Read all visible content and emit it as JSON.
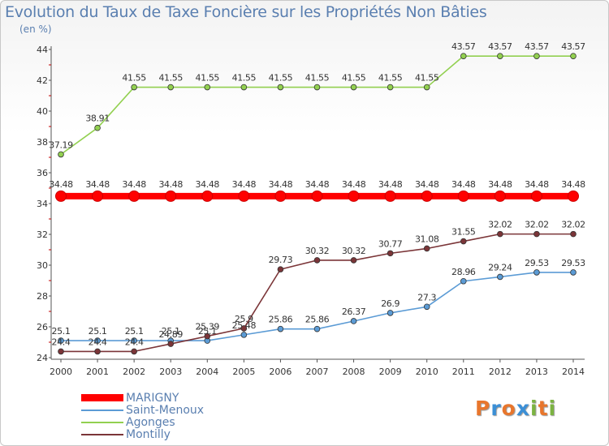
{
  "header": {
    "title": "Evolution du Taux de Taxe Foncière sur les Propriétés Non Bâties",
    "unit": "(en %)"
  },
  "logo": {
    "text": "Proxiti"
  },
  "chart_data": {
    "type": "line",
    "title": "Evolution du Taux de Taxe Foncière sur les Propriétés Non Bâties",
    "ylabel": "(en %)",
    "xlabel": "",
    "ylim": [
      24,
      44
    ],
    "yticks": [
      24,
      26,
      28,
      30,
      32,
      34,
      36,
      38,
      40,
      42,
      44
    ],
    "grid": false,
    "legend_position": "bottom-left",
    "categories": [
      "2000",
      "2001",
      "2002",
      "2003",
      "2004",
      "2005",
      "2006",
      "2007",
      "2008",
      "2009",
      "2010",
      "2011",
      "2012",
      "2013",
      "2014"
    ],
    "series": [
      {
        "name": "MARIGNY",
        "color": "#ff0000",
        "values": [
          34.48,
          34.48,
          34.48,
          34.48,
          34.48,
          34.48,
          34.48,
          34.48,
          34.48,
          34.48,
          34.48,
          34.48,
          34.48,
          34.48,
          34.48
        ],
        "labels": [
          "34.48",
          "34.48",
          "34.48",
          "34.48",
          "34.48",
          "34.48",
          "34.48",
          "34.48",
          "34.48",
          "34.48",
          "34.48",
          "34.48",
          "34.48",
          "34.48",
          "34.48"
        ]
      },
      {
        "name": "Saint-Menoux",
        "color": "#5b9bd5",
        "values": [
          25.1,
          25.1,
          25.1,
          25.1,
          25.1,
          25.48,
          25.86,
          25.86,
          26.37,
          26.9,
          27.3,
          28.96,
          29.24,
          29.53,
          29.53
        ],
        "labels": [
          "25.1",
          "25.1",
          "25.1",
          "25.1",
          "25.1",
          "25.48",
          "25.86",
          "25.86",
          "26.37",
          "26.9",
          "27.3",
          "28.96",
          "29.24",
          "29.53",
          "29.53"
        ]
      },
      {
        "name": "Agonges",
        "color": "#92d050",
        "values": [
          37.19,
          38.91,
          41.55,
          41.55,
          41.55,
          41.55,
          41.55,
          41.55,
          41.55,
          41.55,
          41.55,
          43.57,
          43.57,
          43.57,
          43.57
        ],
        "labels": [
          "37.19",
          "38.91",
          "41.55",
          "41.55",
          "41.55",
          "41.55",
          "41.55",
          "41.55",
          "41.55",
          "41.55",
          "41.55",
          "43.57",
          "43.57",
          "43.57",
          "43.57"
        ]
      },
      {
        "name": "Montilly",
        "color": "#7b3538",
        "values": [
          24.4,
          24.4,
          24.4,
          24.89,
          25.39,
          25.9,
          29.73,
          30.32,
          30.32,
          30.77,
          31.08,
          31.55,
          32.02,
          32.02,
          32.02
        ],
        "labels": [
          "24.4",
          "24.4",
          "24.4",
          "24.89",
          "25.39",
          "25.9",
          "29.73",
          "30.32",
          "30.32",
          "30.77",
          "31.08",
          "31.55",
          "32.02",
          "32.02",
          "32.02"
        ]
      }
    ]
  }
}
